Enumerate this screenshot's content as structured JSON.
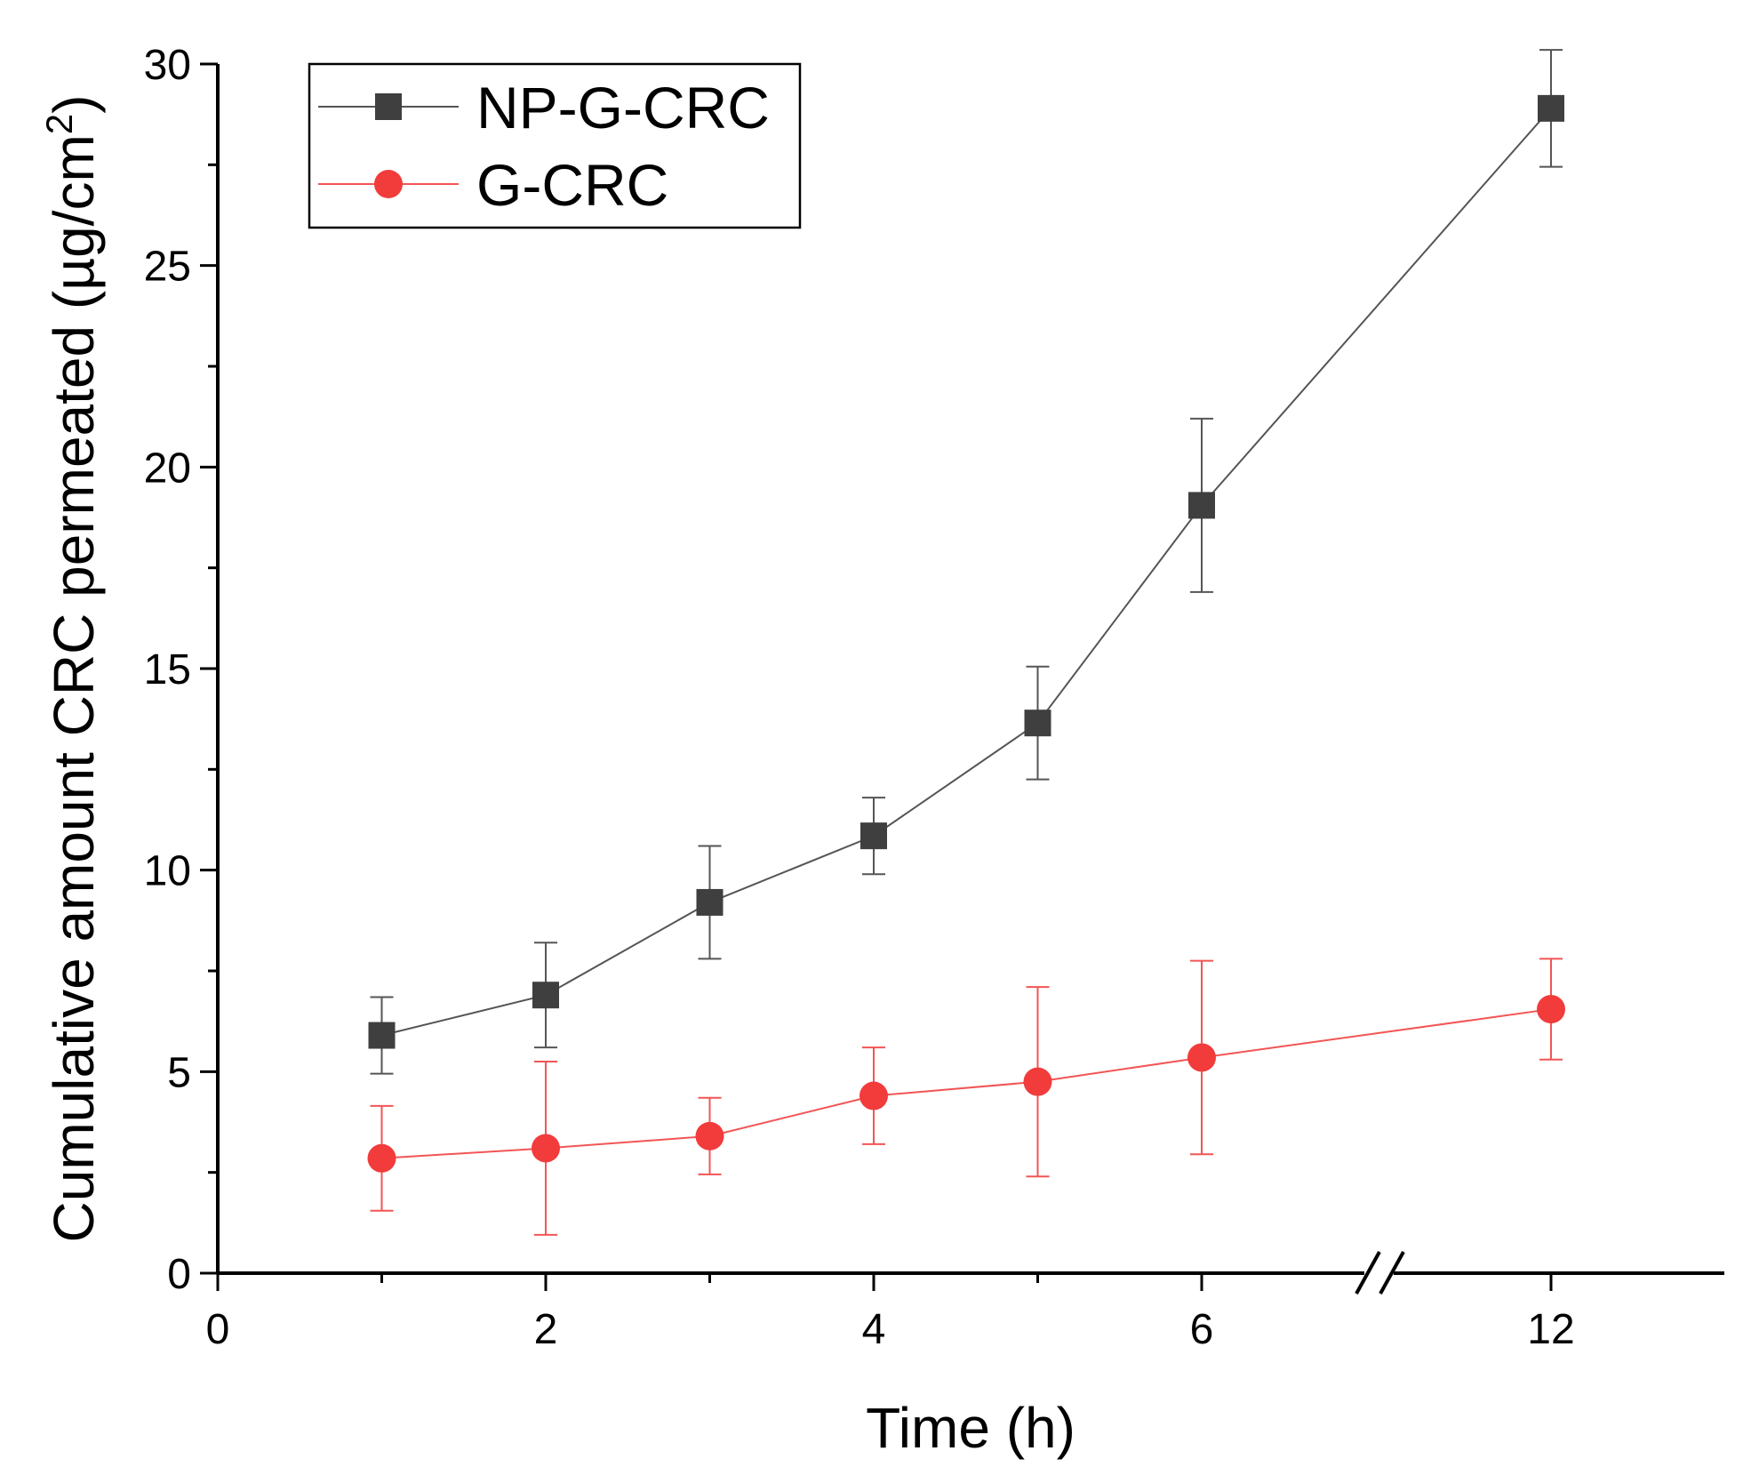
{
  "chart_data": {
    "type": "line",
    "title": "",
    "xlabel": "Time (h)",
    "ylabel": "Cumulative amount CRC permeated (µg/cm²)",
    "ylabel_main": "Cumulative amount CRC permeated (µg/cm",
    "ylabel_sup": "2",
    "ylabel_close": ")",
    "xlim": [
      0,
      14
    ],
    "ylim": [
      0,
      30
    ],
    "axis_break": "between 6 and 12",
    "x_ticks_major": [
      {
        "value": 0,
        "label": "0"
      },
      {
        "value": 2,
        "label": "2"
      },
      {
        "value": 4,
        "label": "4"
      },
      {
        "value": 6,
        "label": "6"
      },
      {
        "value": 12,
        "label": "12"
      }
    ],
    "x_ticks_minor": [
      1,
      3,
      5
    ],
    "y_ticks_major": [
      {
        "value": 0,
        "label": "0"
      },
      {
        "value": 5,
        "label": "5"
      },
      {
        "value": 10,
        "label": "10"
      },
      {
        "value": 15,
        "label": "15"
      },
      {
        "value": 20,
        "label": "20"
      },
      {
        "value": 25,
        "label": "25"
      },
      {
        "value": 30,
        "label": "30"
      }
    ],
    "y_ticks_minor": [
      2.5,
      7.5,
      12.5,
      17.5,
      22.5,
      27.5
    ],
    "grid": false,
    "legend_position": "top-left",
    "series": [
      {
        "name": "NP-G-CRC",
        "marker": "square",
        "color": "#3f3f3f",
        "line_color": "#555555",
        "x": [
          1,
          2,
          3,
          4,
          5,
          6,
          12
        ],
        "values": [
          5.9,
          6.9,
          9.2,
          10.85,
          13.65,
          19.05,
          28.9
        ],
        "error": [
          0.95,
          1.3,
          1.4,
          0.95,
          1.4,
          2.15,
          1.45
        ]
      },
      {
        "name": "G-CRC",
        "marker": "circle",
        "color": "#f23b3b",
        "line_color": "#f25555",
        "x": [
          1,
          2,
          3,
          4,
          5,
          6,
          12
        ],
        "values": [
          2.85,
          3.1,
          3.4,
          4.4,
          4.75,
          5.35,
          6.55
        ],
        "error": [
          1.3,
          2.15,
          0.95,
          1.2,
          2.35,
          2.4,
          1.25
        ]
      }
    ]
  }
}
